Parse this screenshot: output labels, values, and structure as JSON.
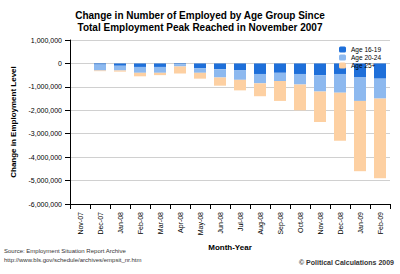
{
  "chart_data": {
    "type": "bar",
    "title": "Change in Number of Employed by Age Group Since\nTotal Employment Peak Reached in November 2007",
    "x_label": "Month-Year",
    "y_label": "Change in Employment Level",
    "categories": [
      "Nov-07",
      "Dec-07",
      "Jan-08",
      "Feb-08",
      "Mar-08",
      "Apr-08",
      "May-08",
      "Jun-08",
      "Jul-08",
      "Aug-08",
      "Sep-08",
      "Oct-08",
      "Nov-08",
      "Dec-08",
      "Jan-09",
      "Feb-09"
    ],
    "series": [
      {
        "name": "Age 16-19",
        "color": "#1e6fd9",
        "values": [
          0,
          -50000,
          -100000,
          -150000,
          -150000,
          -30000,
          -200000,
          -250000,
          -300000,
          -450000,
          -400000,
          -450000,
          -500000,
          -450000,
          -600000,
          -650000
        ]
      },
      {
        "name": "Age 20-24",
        "color": "#8db9ef",
        "values": [
          0,
          -250000,
          -200000,
          -250000,
          -250000,
          -100000,
          -200000,
          -350000,
          -400000,
          -400000,
          -350000,
          -450000,
          -700000,
          -800000,
          -1000000,
          -850000
        ]
      },
      {
        "name": "Age 25+",
        "color": "#fdd0a2",
        "values": [
          0,
          -30000,
          -50000,
          -150000,
          -100000,
          -300000,
          -250000,
          -350000,
          -450000,
          -550000,
          -850000,
          -1100000,
          -1300000,
          -2050000,
          -3000000,
          -3400000
        ]
      }
    ],
    "stacked": true,
    "ylim": [
      -6000000,
      1000000
    ],
    "yticks": [
      {
        "value": -6000000,
        "label": "-6,000,000"
      },
      {
        "value": -5000000,
        "label": "-5,000,000"
      },
      {
        "value": -4000000,
        "label": "-4,000,000"
      },
      {
        "value": -3000000,
        "label": "-3,000,000"
      },
      {
        "value": -2000000,
        "label": "-2,000,000"
      },
      {
        "value": -1000000,
        "label": "-1,000,000"
      },
      0,
      {
        "value": 1000000,
        "label": "1,000,000"
      }
    ],
    "grid": true,
    "legend": "upper right",
    "annotations": [
      "Source: Employment Situation Report Archive",
      "http://www.bls.gov/schedule/archives/empsit_nr.htm",
      "© Political Calculations 2009"
    ]
  }
}
